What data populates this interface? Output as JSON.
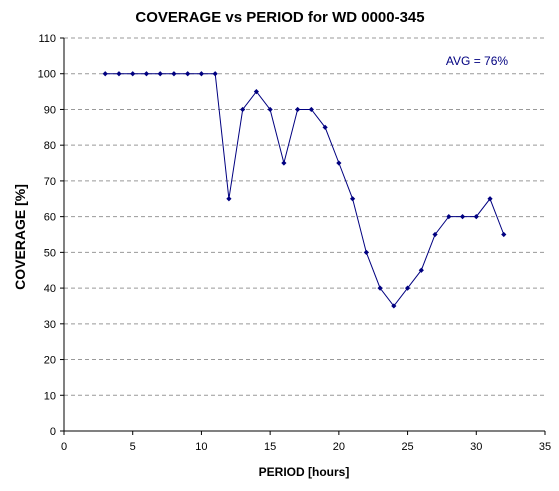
{
  "chart_data": {
    "type": "line",
    "title": "COVERAGE vs PERIOD for WD 0000-345",
    "xlabel": "PERIOD [hours]",
    "ylabel": "COVERAGE [%]",
    "xlim": [
      0,
      35
    ],
    "ylim": [
      0,
      110
    ],
    "xticks": [
      0,
      5,
      10,
      15,
      20,
      25,
      30,
      35
    ],
    "yticks": [
      0,
      10,
      20,
      30,
      40,
      50,
      60,
      70,
      80,
      90,
      100,
      110
    ],
    "grid": "horizontal dashed",
    "annotation": "AVG = 76%",
    "colors": {
      "series": "#000080",
      "annotation": "#000080",
      "grid": "#999999",
      "axis": "#000000"
    },
    "x": [
      3,
      4,
      5,
      6,
      7,
      8,
      9,
      10,
      11,
      12,
      13,
      14,
      15,
      16,
      17,
      18,
      19,
      20,
      21,
      22,
      23,
      24,
      25,
      26,
      27,
      28,
      29,
      30,
      31,
      32
    ],
    "y": [
      100,
      100,
      100,
      100,
      100,
      100,
      100,
      100,
      100,
      65,
      90,
      95,
      90,
      75,
      90,
      90,
      85,
      75,
      65,
      50,
      40,
      35,
      40,
      45,
      55,
      60,
      60,
      60,
      65,
      55
    ]
  }
}
